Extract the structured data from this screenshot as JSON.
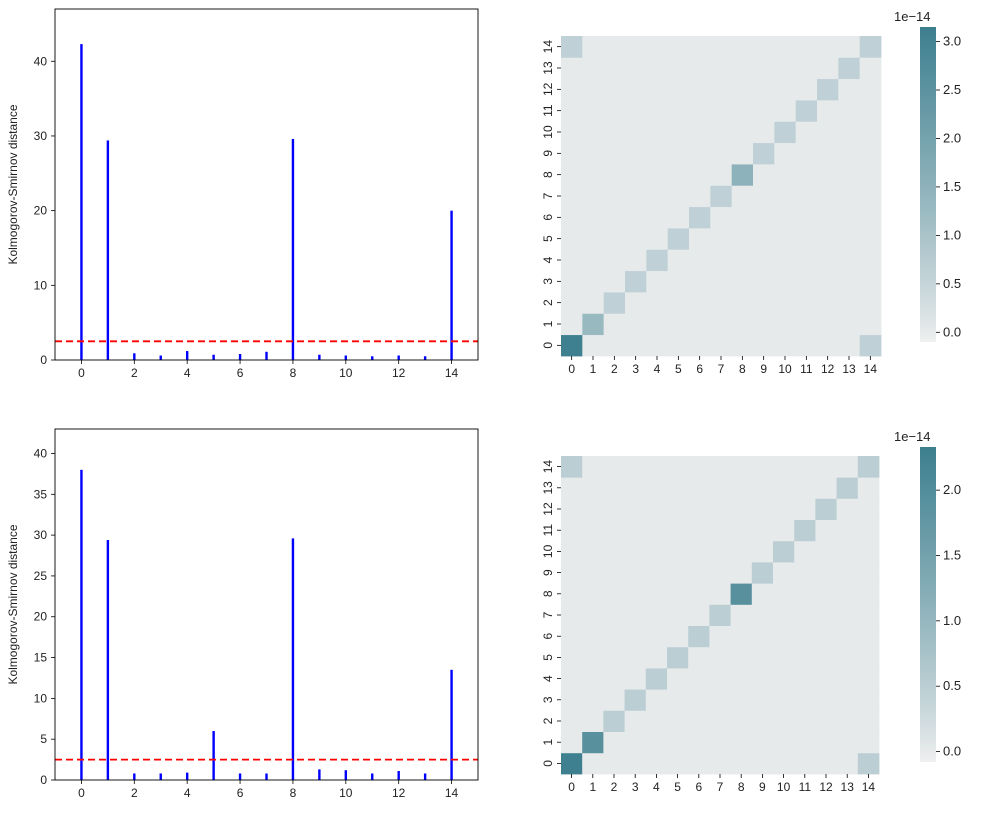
{
  "chart_data": [
    {
      "type": "bar",
      "ylabel": "Kolmogorov-Smirnov distance",
      "xlabel": "",
      "categories": [
        0,
        1,
        2,
        3,
        4,
        5,
        6,
        7,
        8,
        9,
        10,
        11,
        12,
        13,
        14
      ],
      "values": [
        42.3,
        29.4,
        0.9,
        0.6,
        1.2,
        0.7,
        0.8,
        1.1,
        29.6,
        0.7,
        0.6,
        0.5,
        0.6,
        0.5,
        20.0
      ],
      "xlim": [
        -1,
        15
      ],
      "ylim": [
        0,
        47
      ],
      "xticks": [
        "0",
        "2",
        "4",
        "6",
        "8",
        "10",
        "12",
        "14"
      ],
      "yticks": [
        "0",
        "10",
        "20",
        "30",
        "40"
      ],
      "threshold": 2.5,
      "bar_color": "#0000ff",
      "threshold_color": "#ff0000"
    },
    {
      "type": "heatmap",
      "xticks": [
        "0",
        "1",
        "2",
        "3",
        "4",
        "5",
        "6",
        "7",
        "8",
        "9",
        "10",
        "11",
        "12",
        "13",
        "14"
      ],
      "yticks": [
        "0",
        "1",
        "2",
        "3",
        "4",
        "5",
        "6",
        "7",
        "8",
        "9",
        "10",
        "11",
        "12",
        "13",
        "14"
      ],
      "diagonal": [
        3.1,
        1.3,
        0.6,
        0.6,
        0.6,
        0.6,
        0.6,
        0.6,
        1.5,
        0.6,
        0.6,
        0.6,
        0.6,
        0.6,
        0.6
      ],
      "corners": [
        [
          0,
          14,
          0.6
        ],
        [
          14,
          0,
          0.6
        ]
      ],
      "background": 0.0,
      "vmin": -0.1,
      "vmax": 3.15,
      "colorbar_ticks": [
        "0.0",
        "0.5",
        "1.0",
        "1.5",
        "2.0",
        "2.5",
        "3.0"
      ],
      "colorbar_values": [
        0.0,
        0.5,
        1.0,
        1.5,
        2.0,
        2.5,
        3.0
      ],
      "scale_label": "1e−14",
      "color_low": "#f0f0f0",
      "color_high": "#3d7f8f"
    },
    {
      "type": "bar",
      "ylabel": "Kolmogorov-Smirnov distance",
      "xlabel": "",
      "categories": [
        0,
        1,
        2,
        3,
        4,
        5,
        6,
        7,
        8,
        9,
        10,
        11,
        12,
        13,
        14
      ],
      "values": [
        38.0,
        29.4,
        0.8,
        0.8,
        0.9,
        6.0,
        0.8,
        0.8,
        29.6,
        1.3,
        1.2,
        0.8,
        1.1,
        0.8,
        13.5
      ],
      "xlim": [
        -1,
        15
      ],
      "ylim": [
        0,
        43
      ],
      "xticks": [
        "0",
        "2",
        "4",
        "6",
        "8",
        "10",
        "12",
        "14"
      ],
      "yticks": [
        "0",
        "5",
        "10",
        "15",
        "20",
        "25",
        "30",
        "35",
        "40"
      ],
      "threshold": 2.5,
      "bar_color": "#0000ff",
      "threshold_color": "#ff0000"
    },
    {
      "type": "heatmap",
      "xticks": [
        "0",
        "1",
        "2",
        "3",
        "4",
        "5",
        "6",
        "7",
        "8",
        "9",
        "10",
        "11",
        "12",
        "13",
        "14"
      ],
      "yticks": [
        "0",
        "1",
        "2",
        "3",
        "4",
        "5",
        "6",
        "7",
        "8",
        "9",
        "10",
        "11",
        "12",
        "13",
        "14"
      ],
      "diagonal": [
        2.3,
        1.9,
        0.5,
        0.5,
        0.5,
        0.5,
        0.5,
        0.5,
        1.9,
        0.5,
        0.5,
        0.5,
        0.5,
        0.5,
        0.5
      ],
      "corners": [
        [
          0,
          14,
          0.5
        ],
        [
          14,
          0,
          0.5
        ]
      ],
      "background": 0.0,
      "vmin": -0.08,
      "vmax": 2.33,
      "colorbar_ticks": [
        "0.0",
        "0.5",
        "1.0",
        "1.5",
        "2.0"
      ],
      "colorbar_values": [
        0.0,
        0.5,
        1.0,
        1.5,
        2.0
      ],
      "scale_label": "1e−14",
      "color_low": "#f0f0f0",
      "color_high": "#3d7f8f"
    }
  ]
}
